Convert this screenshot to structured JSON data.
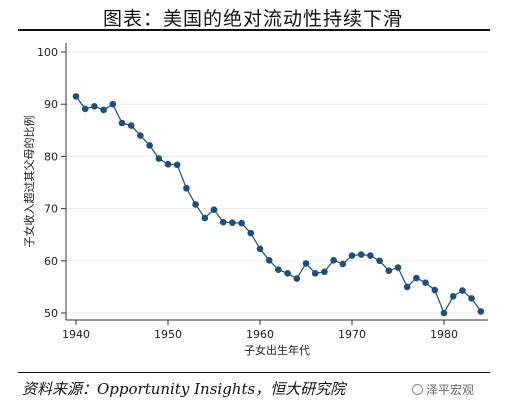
{
  "header": {
    "title": "图表：美国的绝对流动性持续下滑"
  },
  "footer": {
    "source": "资料来源：Opportunity Insights，恒大研究院",
    "watermark": "泽平宏观"
  },
  "chart_data": {
    "type": "line",
    "title": "",
    "xlabel": "子女出生年代",
    "ylabel": "子女收入超过其父母的比例",
    "xlim": [
      1939,
      1985
    ],
    "ylim": [
      48.5,
      101
    ],
    "xticks": [
      1940,
      1950,
      1960,
      1970,
      1980
    ],
    "yticks": [
      50,
      60,
      70,
      80,
      90,
      100
    ],
    "grid": true,
    "line_color": "#1f4e79",
    "marker_color": "#1f4e79",
    "x": [
      1940,
      1941,
      1942,
      1943,
      1944,
      1945,
      1946,
      1947,
      1948,
      1949,
      1950,
      1951,
      1952,
      1953,
      1954,
      1955,
      1956,
      1957,
      1958,
      1959,
      1960,
      1961,
      1962,
      1963,
      1964,
      1965,
      1966,
      1967,
      1968,
      1969,
      1970,
      1971,
      1972,
      1973,
      1974,
      1975,
      1976,
      1977,
      1978,
      1979,
      1980,
      1981,
      1982,
      1983,
      1984
    ],
    "values": [
      91.5,
      89.1,
      89.6,
      88.9,
      90.0,
      86.4,
      85.9,
      84.0,
      82.1,
      79.6,
      78.5,
      78.4,
      73.9,
      70.8,
      68.2,
      69.8,
      67.4,
      67.3,
      67.2,
      65.3,
      62.3,
      60.1,
      58.3,
      57.6,
      56.6,
      59.5,
      57.6,
      57.9,
      60.1,
      59.4,
      61.0,
      61.2,
      61.0,
      60.0,
      58.1,
      58.7,
      55.0,
      56.7,
      55.8,
      54.4,
      50.0,
      53.2,
      54.3,
      52.8,
      50.3
    ]
  }
}
